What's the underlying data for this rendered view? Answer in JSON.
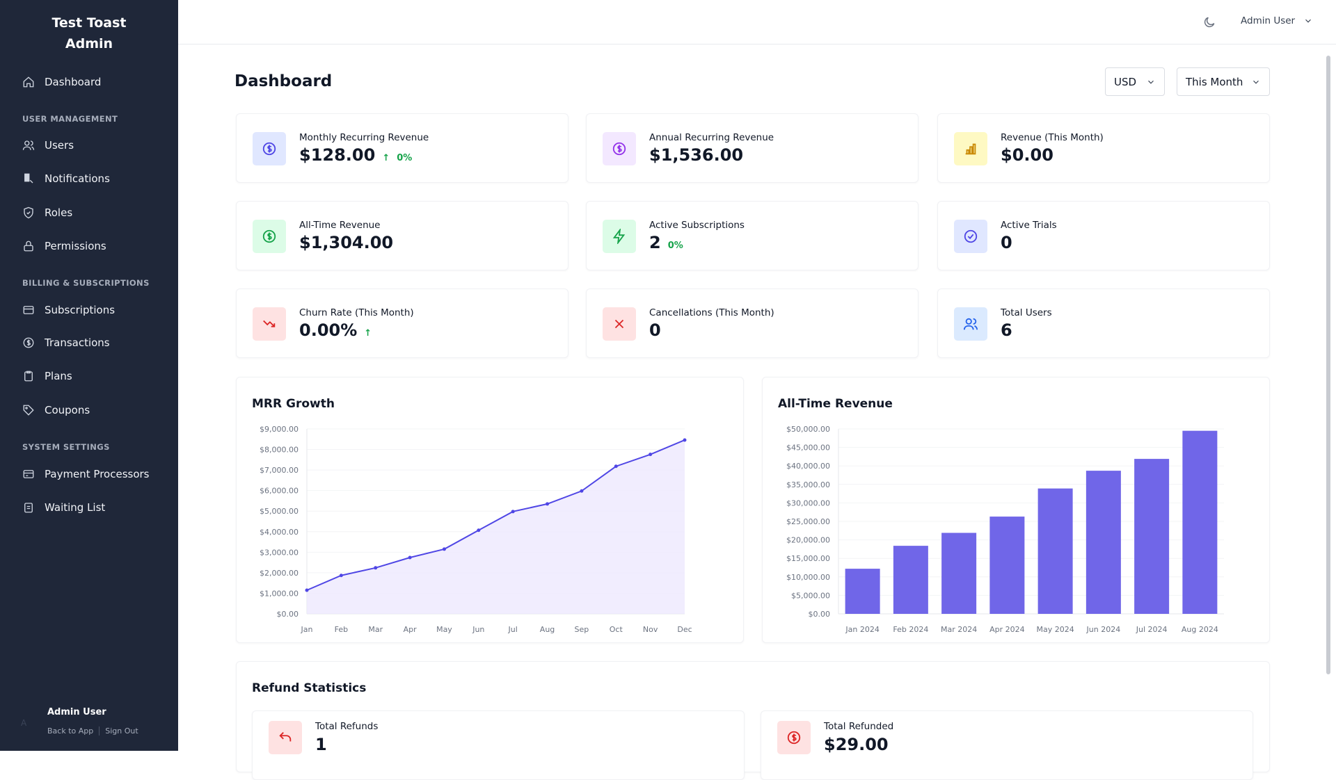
{
  "sidebar": {
    "brand_line1": "Test Toast",
    "brand_line2": "Admin",
    "dashboard": "Dashboard",
    "sections": [
      "USER MANAGEMENT",
      "BILLING & SUBSCRIPTIONS",
      "SYSTEM SETTINGS"
    ],
    "items": [
      "Users",
      "Notifications",
      "Roles",
      "Permissions",
      "Subscriptions",
      "Transactions",
      "Plans",
      "Coupons",
      "Payment Processors",
      "Waiting List"
    ],
    "footer": {
      "avatar": "A",
      "name": "Admin User",
      "back": "Back to App",
      "signout": "Sign Out"
    }
  },
  "topbar": {
    "user": "Admin User",
    "theme_icon": "moon-icon"
  },
  "page": {
    "title": "Dashboard",
    "currency": "USD",
    "period": "This Month"
  },
  "stats": [
    {
      "label": "Monthly Recurring Revenue",
      "value": "$128.00",
      "change": "0%",
      "trend": "up",
      "color": "#4f46e5",
      "bg": "#e0e7ff"
    },
    {
      "label": "Annual Recurring Revenue",
      "value": "$1,536.00",
      "color": "#9333ea",
      "bg": "#f3e8ff"
    },
    {
      "label": "Revenue (This Month)",
      "value": "$0.00",
      "color": "#ca8a04",
      "bg": "#fef9c3"
    },
    {
      "label": "All-Time Revenue",
      "value": "$1,304.00",
      "color": "#16a34a",
      "bg": "#dcfce7"
    },
    {
      "label": "Active Subscriptions",
      "value": "2",
      "change": "0%",
      "color": "#16a34a",
      "bg": "#dcfce7"
    },
    {
      "label": "Active Trials",
      "value": "0",
      "color": "#4f46e5",
      "bg": "#e0e7ff"
    },
    {
      "label": "Churn Rate (This Month)",
      "value": "0.00%",
      "change": "",
      "trend": "up",
      "color": "#dc2626",
      "bg": "#fee2e2"
    },
    {
      "label": "Cancellations (This Month)",
      "value": "0",
      "color": "#dc2626",
      "bg": "#fee2e2"
    },
    {
      "label": "Total Users",
      "value": "6",
      "color": "#2563eb",
      "bg": "#dbeafe"
    }
  ],
  "refunds": {
    "title": "Refund Statistics",
    "total_refunds_label": "Total Refunds",
    "total_refunds": "1",
    "total_refunded_label": "Total Refunded",
    "total_refunded": "$29.00"
  },
  "chart_data": [
    {
      "type": "area",
      "title": "MRR Growth",
      "categories": [
        "Jan",
        "Feb",
        "Mar",
        "Apr",
        "May",
        "Jun",
        "Jul",
        "Aug",
        "Sep",
        "Oct",
        "Nov",
        "Dec"
      ],
      "values": [
        1150,
        1870,
        2240,
        2740,
        3150,
        4070,
        4980,
        5350,
        5980,
        7180,
        7760,
        8460
      ],
      "ylim": [
        0,
        9000
      ],
      "yticks": [
        "$0.00",
        "$1,000.00",
        "$2,000.00",
        "$3,000.00",
        "$4,000.00",
        "$5,000.00",
        "$6,000.00",
        "$7,000.00",
        "$8,000.00",
        "$9,000.00"
      ],
      "color": "#4f46e5",
      "grid": true
    },
    {
      "type": "bar",
      "title": "All-Time Revenue",
      "categories": [
        "Jan 2024",
        "Feb 2024",
        "Mar 2024",
        "Apr 2024",
        "May 2024",
        "Jun 2024",
        "Jul 2024",
        "Aug 2024"
      ],
      "values": [
        12200,
        18400,
        21900,
        26300,
        33900,
        38700,
        41900,
        49500
      ],
      "ylim": [
        0,
        50000
      ],
      "yticks": [
        "$0.00",
        "$5,000.00",
        "$10,000.00",
        "$15,000.00",
        "$20,000.00",
        "$25,000.00",
        "$30,000.00",
        "$35,000.00",
        "$40,000.00",
        "$45,000.00",
        "$50,000.00"
      ],
      "color": "#7066e8",
      "grid": true
    }
  ]
}
